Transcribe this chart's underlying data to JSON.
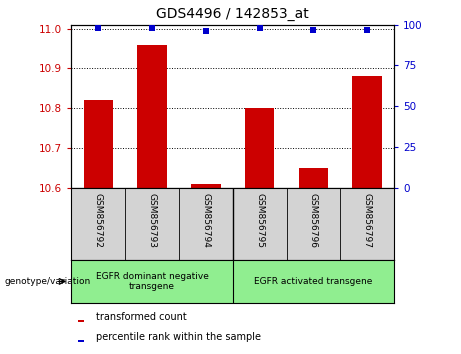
{
  "title": "GDS4496 / 142853_at",
  "categories": [
    "GSM856792",
    "GSM856793",
    "GSM856794",
    "GSM856795",
    "GSM856796",
    "GSM856797"
  ],
  "bar_values": [
    10.82,
    10.96,
    10.61,
    10.8,
    10.65,
    10.88
  ],
  "percentile_values": [
    98,
    98,
    96,
    98,
    97,
    97
  ],
  "ylim_left": [
    10.6,
    11.0
  ],
  "ylim_right": [
    0,
    100
  ],
  "yticks_left": [
    10.6,
    10.7,
    10.8,
    10.9,
    11.0
  ],
  "yticks_right": [
    0,
    25,
    50,
    75,
    100
  ],
  "bar_color": "#cc0000",
  "dot_color": "#0000cc",
  "group1_label": "EGFR dominant negative\ntransgene",
  "group2_label": "EGFR activated transgene",
  "group1_indices": [
    0,
    1,
    2
  ],
  "group2_indices": [
    3,
    4,
    5
  ],
  "genotype_label": "genotype/variation",
  "legend_bar_label": "transformed count",
  "legend_dot_label": "percentile rank within the sample",
  "group_bg_color": "#90EE90",
  "sample_bg_color": "#d3d3d3",
  "title_fontsize": 10,
  "tick_fontsize": 7.5,
  "label_fontsize": 6.5
}
